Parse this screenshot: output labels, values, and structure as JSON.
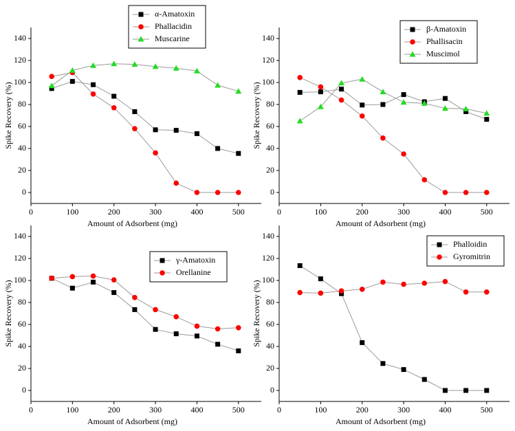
{
  "chart_data": [
    {
      "type": "line",
      "x_label": "Amount of Adsorbent (mg)",
      "y_label": "Spike Recovery (%)",
      "x": [
        50,
        100,
        150,
        200,
        250,
        300,
        350,
        400,
        450,
        500
      ],
      "xlim": [
        0,
        555
      ],
      "xticks": [
        0,
        100,
        200,
        300,
        400,
        500
      ],
      "ylim": [
        -10,
        150
      ],
      "yticks": [
        0,
        20,
        40,
        60,
        80,
        100,
        120,
        140
      ],
      "legend": "upper center",
      "series": [
        {
          "name": "α-Amatoxin",
          "color": "#000000",
          "marker": "square",
          "values": [
            94.5,
            101,
            98,
            87.5,
            73.5,
            57,
            56.5,
            53.5,
            40,
            35.5
          ]
        },
        {
          "name": "Phallacidin",
          "color": "#ff0000",
          "marker": "circle",
          "values": [
            105.5,
            109,
            89.5,
            77,
            58,
            36,
            8.5,
            0,
            0,
            0
          ]
        },
        {
          "name": "Muscarine",
          "color": "#22dd22",
          "marker": "triangle",
          "values": [
            97,
            111,
            115.5,
            117,
            116.5,
            114.5,
            113,
            110.5,
            97.5,
            92
          ]
        }
      ]
    },
    {
      "type": "line",
      "x_label": "Amount of Adsorbent (mg)",
      "y_label": "Spike Recovery (%)",
      "x": [
        50,
        100,
        150,
        200,
        250,
        300,
        350,
        400,
        450,
        500
      ],
      "xlim": [
        0,
        555
      ],
      "xticks": [
        0,
        100,
        200,
        300,
        400,
        500
      ],
      "ylim": [
        -10,
        150
      ],
      "yticks": [
        0,
        20,
        40,
        60,
        80,
        100,
        120,
        140
      ],
      "legend": "upper right",
      "series": [
        {
          "name": "β-Amatoxin",
          "color": "#000000",
          "marker": "square",
          "values": [
            91,
            91.5,
            94,
            79.5,
            80,
            89,
            82.5,
            85.5,
            73.5,
            66.5
          ]
        },
        {
          "name": "Phallisacin",
          "color": "#ff0000",
          "marker": "circle",
          "values": [
            104.5,
            96,
            84,
            69.5,
            49.5,
            35,
            11.5,
            0,
            0,
            0
          ]
        },
        {
          "name": "Muscimol",
          "color": "#22dd22",
          "marker": "triangle",
          "values": [
            65,
            78,
            99.5,
            103,
            91.5,
            82,
            81,
            76.5,
            76,
            72
          ]
        }
      ]
    },
    {
      "type": "line",
      "x_label": "Amount of Adsorbent (mg)",
      "y_label": "Spike Recovery (%)",
      "x": [
        50,
        100,
        150,
        200,
        250,
        300,
        350,
        400,
        450,
        500
      ],
      "xlim": [
        0,
        555
      ],
      "xticks": [
        0,
        100,
        200,
        300,
        400,
        500
      ],
      "ylim": [
        -10,
        150
      ],
      "yticks": [
        0,
        20,
        40,
        60,
        80,
        100,
        120,
        140
      ],
      "legend": "center right",
      "series": [
        {
          "name": "γ-Amatoxin",
          "color": "#000000",
          "marker": "square",
          "values": [
            102,
            93,
            98.5,
            89,
            73.5,
            55.5,
            51.5,
            49.5,
            42,
            36
          ]
        },
        {
          "name": "Orellanine",
          "color": "#ff0000",
          "marker": "circle",
          "values": [
            102,
            103.5,
            104,
            100.5,
            84.5,
            73.5,
            67,
            58.5,
            56,
            57
          ]
        }
      ]
    },
    {
      "type": "line",
      "x_label": "Amount of Adsorbent (mg)",
      "y_label": "Spike Recovery (%)",
      "x": [
        50,
        100,
        150,
        200,
        250,
        300,
        350,
        400,
        450,
        500
      ],
      "xlim": [
        0,
        555
      ],
      "xticks": [
        0,
        100,
        200,
        300,
        400,
        500
      ],
      "ylim": [
        -10,
        150
      ],
      "yticks": [
        0,
        20,
        40,
        60,
        80,
        100,
        120,
        140
      ],
      "legend": "upper right",
      "series": [
        {
          "name": "Phalloidin",
          "color": "#000000",
          "marker": "square",
          "values": [
            113.5,
            101.5,
            88,
            43.5,
            24.5,
            19,
            10,
            0,
            0,
            0
          ]
        },
        {
          "name": "Gyromitrin",
          "color": "#ff0000",
          "marker": "circle",
          "values": [
            89,
            88.5,
            90.5,
            92,
            98.5,
            96.5,
            97.5,
            99,
            89.5,
            89.5
          ]
        }
      ]
    }
  ]
}
